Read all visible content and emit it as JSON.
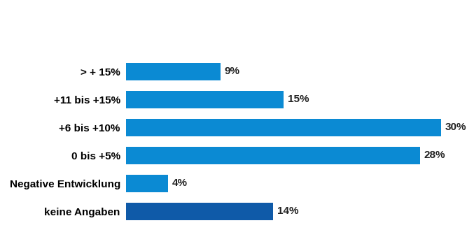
{
  "chart_data": {
    "type": "bar",
    "orientation": "horizontal",
    "categories": [
      "> + 15%",
      "+11 bis +15%",
      "+6 bis +10%",
      "0 bis +5%",
      "Negative Entwicklung",
      "keine Angaben"
    ],
    "values": [
      9,
      15,
      30,
      28,
      4,
      14
    ],
    "value_labels": [
      "9%",
      "15%",
      "30%",
      "28%",
      "4%",
      "14%"
    ],
    "colors": [
      "#0b8ad3",
      "#0b8ad3",
      "#0b8ad3",
      "#0b8ad3",
      "#0b8ad3",
      "#0f5aa8"
    ],
    "data_labels": true,
    "tick_labels": "y",
    "grid": false
  }
}
